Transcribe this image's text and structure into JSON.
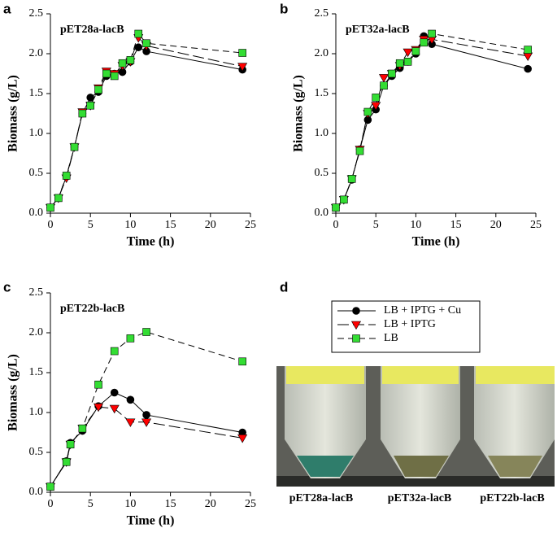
{
  "chart_data": [
    {
      "type": "line",
      "panel": "a",
      "label": "pET28a-lacB",
      "xlabel": "Time (h)",
      "ylabel": "Biomass (g/L)",
      "x": [
        0,
        1,
        2,
        3,
        4,
        5,
        6,
        7,
        8,
        9,
        10,
        11,
        12,
        24
      ],
      "series": [
        {
          "name": "LB + IPTG + Cu",
          "color": "#000000",
          "line_style": "solid",
          "marker": "circle",
          "values": [
            0.07,
            0.19,
            0.46,
            0.83,
            1.25,
            1.45,
            1.52,
            1.72,
            1.75,
            1.77,
            1.9,
            2.08,
            2.03,
            1.8
          ]
        },
        {
          "name": "LB + IPTG",
          "color": "#ff0000",
          "line_style": "long-dash",
          "marker": "triangle-down",
          "values": [
            0.07,
            0.19,
            0.44,
            0.83,
            1.27,
            1.35,
            1.57,
            1.78,
            1.75,
            1.85,
            1.9,
            2.2,
            2.1,
            1.84
          ]
        },
        {
          "name": "LB",
          "color": "#33dd33",
          "line_style": "dash",
          "marker": "square",
          "values": [
            0.07,
            0.19,
            0.47,
            0.83,
            1.25,
            1.35,
            1.55,
            1.75,
            1.72,
            1.88,
            1.92,
            2.25,
            2.13,
            2.01
          ]
        }
      ],
      "xlim": [
        0,
        25
      ],
      "xticks": [
        0,
        5,
        10,
        15,
        20,
        25
      ],
      "ylim": [
        0,
        2.5
      ],
      "yticks": [
        {
          "value": 0,
          "label": "0.0"
        },
        0.5,
        {
          "value": 1,
          "label": "1.0"
        },
        1.5,
        {
          "value": 2,
          "label": "2.0"
        },
        2.5
      ]
    },
    {
      "type": "line",
      "panel": "b",
      "label": "pET32a-lacB",
      "xlabel": "Time (h)",
      "ylabel": "Biomass (g/L)",
      "x": [
        0,
        1,
        2,
        3,
        4,
        5,
        6,
        7,
        8,
        9,
        10,
        11,
        12,
        24
      ],
      "series": [
        {
          "name": "LB + IPTG + Cu",
          "color": "#000000",
          "line_style": "solid",
          "marker": "circle",
          "values": [
            0.07,
            0.17,
            0.42,
            0.8,
            1.17,
            1.3,
            1.6,
            1.72,
            1.82,
            1.9,
            2.0,
            2.22,
            2.12,
            1.81
          ]
        },
        {
          "name": "LB + IPTG",
          "color": "#ff0000",
          "line_style": "long-dash",
          "marker": "triangle-down",
          "values": [
            0.07,
            0.17,
            0.43,
            0.8,
            1.25,
            1.35,
            1.7,
            1.75,
            1.85,
            2.02,
            2.05,
            2.18,
            2.18,
            1.97
          ]
        },
        {
          "name": "LB",
          "color": "#33dd33",
          "line_style": "dash",
          "marker": "square",
          "values": [
            0.07,
            0.17,
            0.43,
            0.78,
            1.27,
            1.45,
            1.6,
            1.75,
            1.88,
            1.9,
            2.03,
            2.14,
            2.25,
            2.05
          ]
        }
      ],
      "xlim": [
        0,
        25
      ],
      "xticks": [
        0,
        5,
        10,
        15,
        20,
        25
      ],
      "ylim": [
        0,
        2.5
      ],
      "yticks": [
        {
          "value": 0,
          "label": "0.0"
        },
        0.5,
        {
          "value": 1,
          "label": "1.0"
        },
        1.5,
        {
          "value": 2,
          "label": "2.0"
        },
        2.5
      ]
    },
    {
      "type": "line",
      "panel": "c",
      "label": "pET22b-lacB",
      "xlabel": "Time (h)",
      "ylabel": "Biomass (g/L)",
      "x": [
        0,
        2,
        2.5,
        4,
        6,
        8,
        10,
        12,
        24
      ],
      "series": [
        {
          "name": "LB + IPTG + Cu",
          "color": "#000000",
          "line_style": "solid",
          "marker": "circle",
          "values": [
            0.07,
            0.39,
            0.62,
            0.77,
            1.08,
            1.25,
            1.16,
            0.97,
            0.75
          ]
        },
        {
          "name": "LB + IPTG",
          "color": "#ff0000",
          "line_style": "long-dash",
          "marker": "triangle-down",
          "values": [
            0.07,
            0.38,
            0.6,
            0.8,
            1.07,
            1.05,
            0.88,
            0.88,
            0.68
          ]
        },
        {
          "name": "LB",
          "color": "#33dd33",
          "line_style": "dash",
          "marker": "square",
          "values": [
            0.07,
            0.38,
            0.6,
            0.8,
            1.35,
            1.77,
            1.93,
            2.01,
            1.64
          ]
        }
      ],
      "xlim": [
        0,
        25
      ],
      "xticks": [
        0,
        5,
        10,
        15,
        20,
        25
      ],
      "ylim": [
        0,
        2.5
      ],
      "yticks": [
        {
          "value": 0,
          "label": "0.0"
        },
        0.5,
        {
          "value": 1,
          "label": "1.0"
        },
        1.5,
        {
          "value": 2,
          "label": "2.0"
        },
        2.5
      ]
    }
  ],
  "panel_d": {
    "panel": "d",
    "tube_labels": [
      "pET28a-lacB",
      "pET32a-lacB",
      "pET22b-lacB"
    ]
  }
}
